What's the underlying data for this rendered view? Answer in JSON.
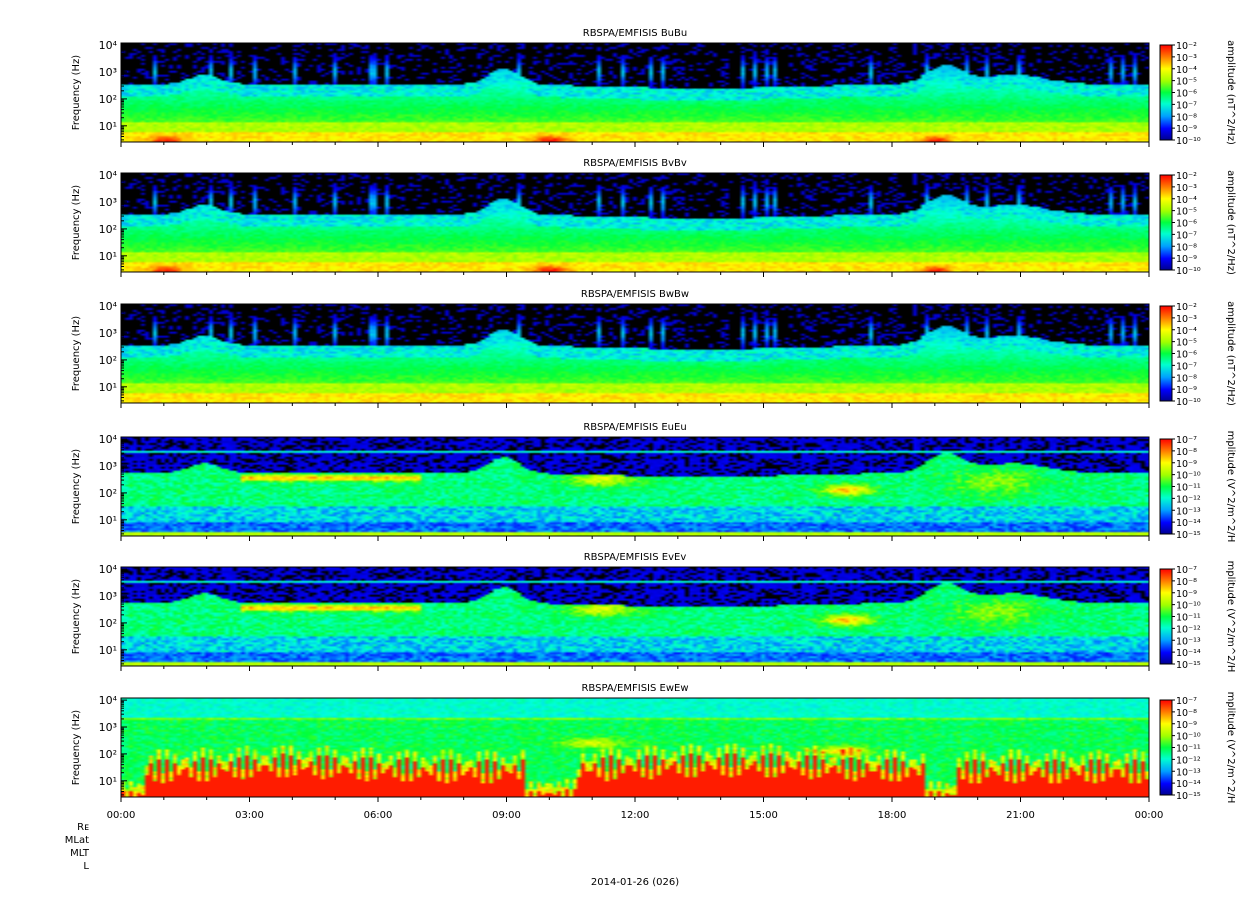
{
  "chart_data": {
    "type": "heatmap",
    "date_label": "2014-01-26 (026)",
    "x_ticks": [
      "00:00",
      "03:00",
      "06:00",
      "09:00",
      "12:00",
      "15:00",
      "18:00",
      "21:00",
      "00:00"
    ],
    "x_range_hours": [
      0,
      24
    ],
    "y_scale": "log",
    "y_range_hz": [
      2.5,
      12000
    ],
    "ephemeris_labels": [
      "Rᴇ",
      "MLat",
      "MLT",
      "L"
    ],
    "panels": [
      {
        "title": "RBSPA/EMFISIS  BuBu",
        "ylabel": "Frequency (Hz)",
        "yticks": [
          "10⁴",
          "10³",
          "10²",
          "10¹"
        ],
        "colorbar_label": "amplitude (nT^2/Hz)",
        "colorbar_range_exp": [
          -10,
          -2
        ],
        "colorbar_ticks": [
          "10⁻²",
          "10⁻³",
          "10⁻⁴",
          "10⁻⁵",
          "10⁻⁶",
          "10⁻⁷",
          "10⁻⁸",
          "10⁻⁹",
          "10⁻¹⁰"
        ],
        "kind": "B"
      },
      {
        "title": "RBSPA/EMFISIS  BvBv",
        "ylabel": "Frequency (Hz)",
        "yticks": [
          "10⁴",
          "10³",
          "10²",
          "10¹"
        ],
        "colorbar_label": "amplitude (nT^2/Hz)",
        "colorbar_range_exp": [
          -10,
          -2
        ],
        "colorbar_ticks": [
          "10⁻²",
          "10⁻³",
          "10⁻⁴",
          "10⁻⁵",
          "10⁻⁶",
          "10⁻⁷",
          "10⁻⁸",
          "10⁻⁹",
          "10⁻¹⁰"
        ],
        "kind": "B"
      },
      {
        "title": "RBSPA/EMFISIS  BwBw",
        "ylabel": "Frequency (Hz)",
        "yticks": [
          "10⁴",
          "10³",
          "10²",
          "10¹"
        ],
        "colorbar_label": "amplitude (nT^2/Hz)",
        "colorbar_range_exp": [
          -10,
          -2
        ],
        "colorbar_ticks": [
          "10⁻²",
          "10⁻³",
          "10⁻⁴",
          "10⁻⁵",
          "10⁻⁶",
          "10⁻⁷",
          "10⁻⁸",
          "10⁻⁹",
          "10⁻¹⁰"
        ],
        "kind": "Bw"
      },
      {
        "title": "RBSPA/EMFISIS  EuEu",
        "ylabel": "Frequency (Hz)",
        "yticks": [
          "10⁴",
          "10³",
          "10²",
          "10¹"
        ],
        "colorbar_label": "mplitude (V^2/m^2/H",
        "colorbar_range_exp": [
          -15,
          -7
        ],
        "colorbar_ticks": [
          "10⁻⁷",
          "10⁻⁸",
          "10⁻⁹",
          "10⁻¹⁰",
          "10⁻¹¹",
          "10⁻¹²",
          "10⁻¹³",
          "10⁻¹⁴",
          "10⁻¹⁵"
        ],
        "kind": "E"
      },
      {
        "title": "RBSPA/EMFISIS  EvEv",
        "ylabel": "Frequency (Hz)",
        "yticks": [
          "10⁴",
          "10³",
          "10²",
          "10¹"
        ],
        "colorbar_label": "mplitude (V^2/m^2/H",
        "colorbar_range_exp": [
          -15,
          -7
        ],
        "colorbar_ticks": [
          "10⁻⁷",
          "10⁻⁸",
          "10⁻⁹",
          "10⁻¹⁰",
          "10⁻¹¹",
          "10⁻¹²",
          "10⁻¹³",
          "10⁻¹⁴",
          "10⁻¹⁵"
        ],
        "kind": "E"
      },
      {
        "title": "RBSPA/EMFISIS  EwEw",
        "ylabel": "Frequency (Hz)",
        "yticks": [
          "10⁴",
          "10³",
          "10²",
          "10¹"
        ],
        "colorbar_label": "mplitude (V^2/m^2/H",
        "colorbar_range_exp": [
          -15,
          -7
        ],
        "colorbar_ticks": [
          "10⁻⁷",
          "10⁻⁸",
          "10⁻⁹",
          "10⁻¹⁰",
          "10⁻¹¹",
          "10⁻¹²",
          "10⁻¹³",
          "10⁻¹⁴",
          "10⁻¹⁵"
        ],
        "kind": "Ew"
      }
    ]
  }
}
